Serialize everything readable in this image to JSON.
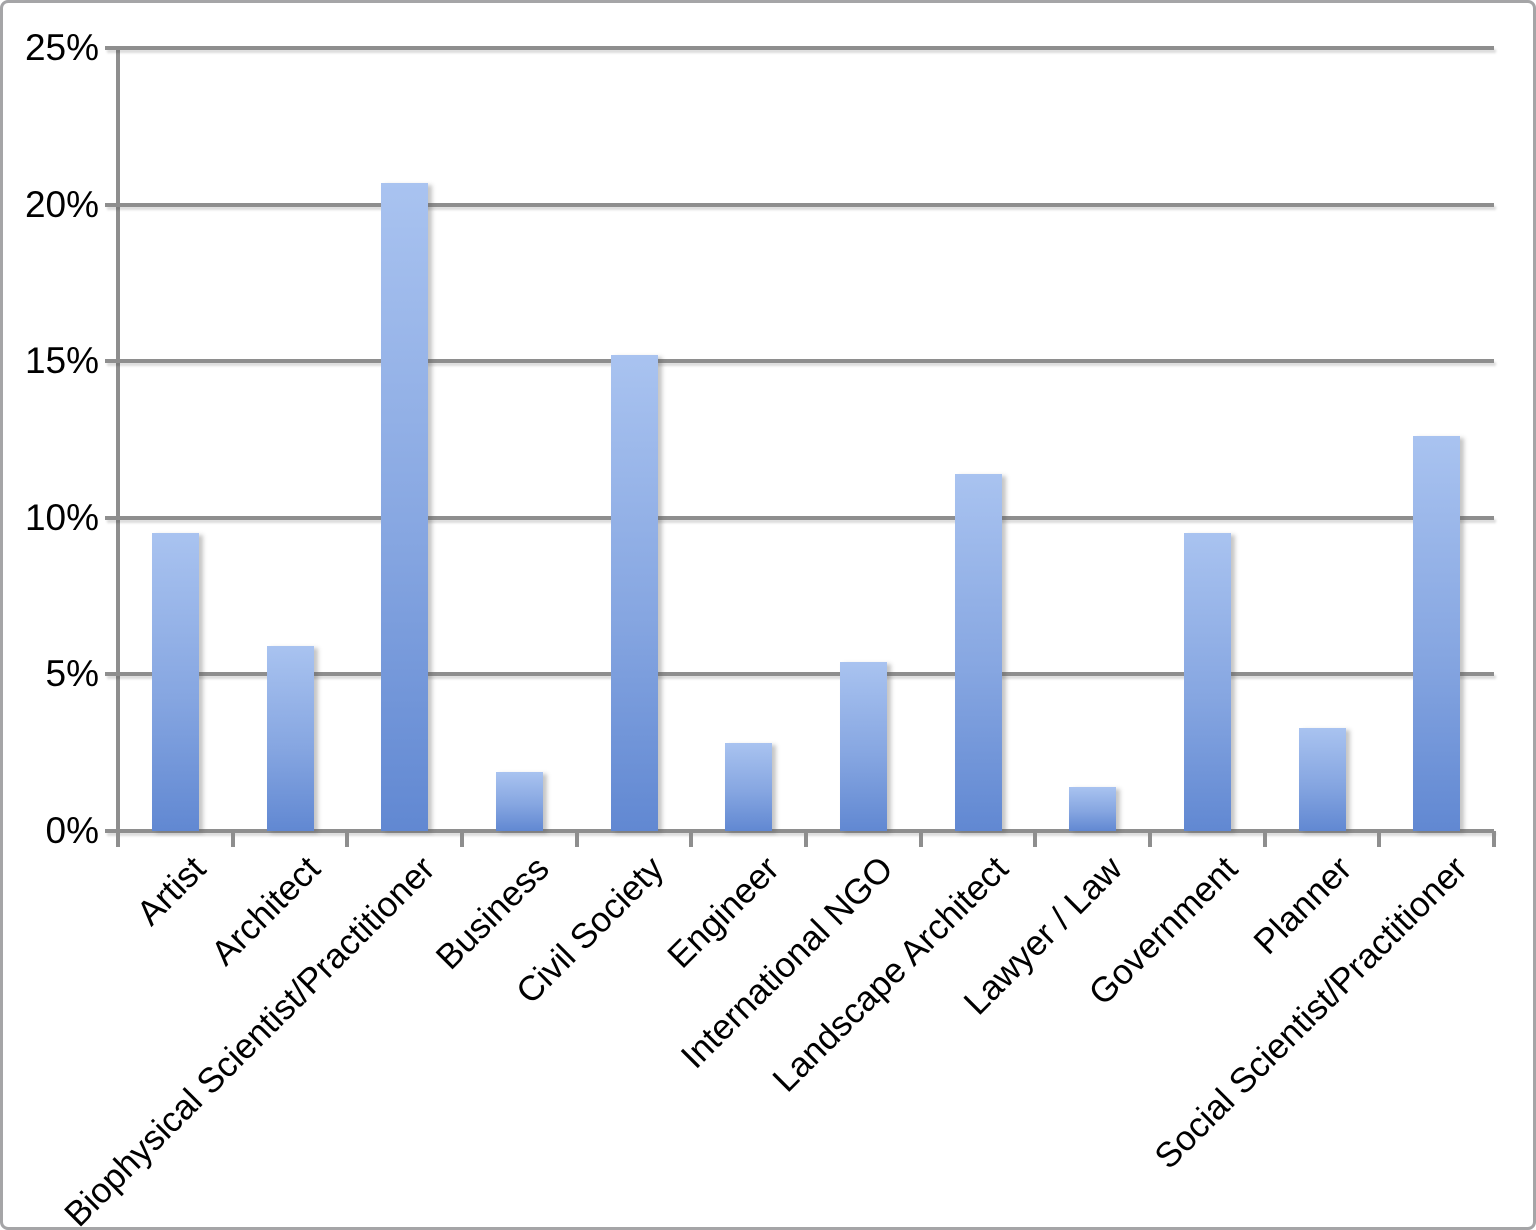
{
  "chart_data": {
    "type": "bar",
    "title": "",
    "xlabel": "",
    "ylabel": "",
    "categories": [
      "Artist",
      "Architect",
      "Biophysical Scientist/Practitioner",
      "Business",
      "Civil Society",
      "Engineer",
      "International NGO",
      "Landscape Architect",
      "Lawyer / Law",
      "Government",
      "Planner",
      "Social Scientist/Practitioner"
    ],
    "values": [
      9.5,
      5.9,
      20.7,
      1.9,
      15.2,
      2.8,
      5.4,
      11.4,
      1.4,
      9.5,
      3.3,
      12.6
    ],
    "value_unit": "%",
    "ylim": [
      0,
      25
    ],
    "y_ticks": [
      0,
      5,
      10,
      15,
      20,
      25
    ],
    "y_tick_labels": [
      "0%",
      "5%",
      "10%",
      "15%",
      "20%",
      "25%"
    ],
    "grid": true,
    "legend": false,
    "colors": {
      "bar_gradient_top": "#a9c3f0",
      "bar_gradient_bottom": "#6188d2",
      "gridline": "#8e8e8e",
      "axis": "#8e8e8e",
      "label_text": "#000000",
      "frame_border": "#a5a5a7",
      "background": "#ffffff"
    }
  }
}
